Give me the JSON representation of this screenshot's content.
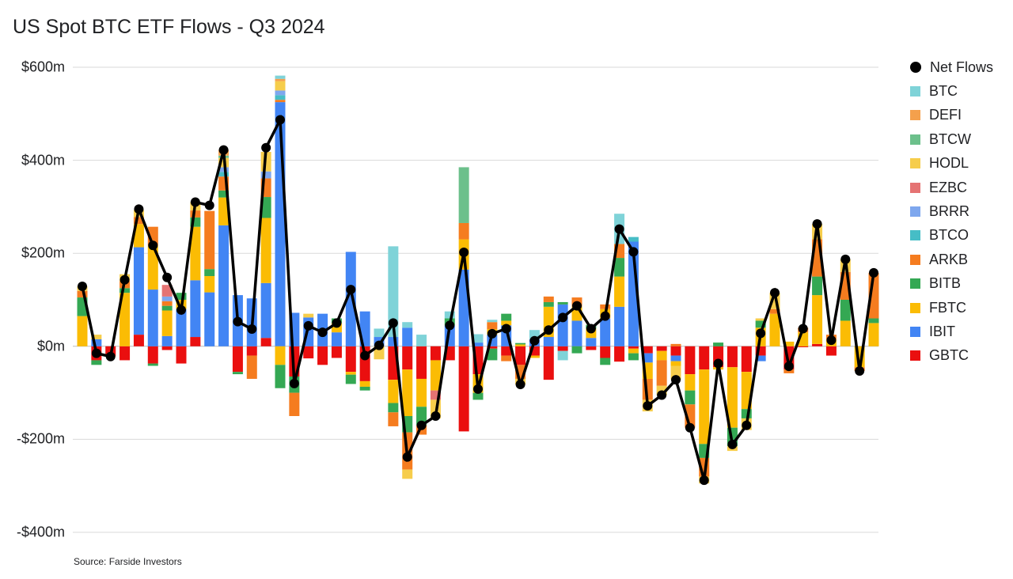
{
  "title": "US Spot BTC ETF Flows - Q3 2024",
  "source": "Source: Farside Investors",
  "chart_data": {
    "type": "bar",
    "stacked": true,
    "ylim": [
      -400,
      600
    ],
    "yticks": [
      {
        "value": 600,
        "label": "$600m"
      },
      {
        "value": 400,
        "label": "$400m"
      },
      {
        "value": 200,
        "label": "$200m"
      },
      {
        "value": 0,
        "label": "$0m"
      },
      {
        "value": -200,
        "label": "-$200m"
      },
      {
        "value": -400,
        "label": "-$400m"
      }
    ],
    "grid": true,
    "legend_position": "right",
    "legend": [
      {
        "name": "Net Flows",
        "color": "#000000",
        "marker": "dot"
      },
      {
        "name": "BTC",
        "color": "#7fd3d8"
      },
      {
        "name": "DEFI",
        "color": "#f4a04c"
      },
      {
        "name": "BTCW",
        "color": "#6cc08b"
      },
      {
        "name": "HODL",
        "color": "#f6cd4b"
      },
      {
        "name": "EZBC",
        "color": "#e57373"
      },
      {
        "name": "BRRR",
        "color": "#7ea7ee"
      },
      {
        "name": "BTCO",
        "color": "#46bdc6"
      },
      {
        "name": "ARKB",
        "color": "#f57c1f"
      },
      {
        "name": "BITB",
        "color": "#34a853"
      },
      {
        "name": "FBTC",
        "color": "#fbbc04"
      },
      {
        "name": "IBIT",
        "color": "#4285f4"
      },
      {
        "name": "GBTC",
        "color": "#ea0f0f"
      }
    ],
    "days": [
      {
        "net": 129,
        "s": {
          "FBTC": 65,
          "BITB": 40,
          "ARKB": 14,
          "HODL": 10
        }
      },
      {
        "net": -15,
        "s": {
          "IBIT": 15,
          "HODL": 10,
          "GBTC": -30,
          "BITB": -10
        }
      },
      {
        "net": -22,
        "s": {
          "GBTC": -20,
          "ARKB": -2
        }
      },
      {
        "net": 143,
        "s": {
          "FBTC": 115,
          "BITB": 10,
          "ARKB": 15,
          "HODL": 15,
          "GBTC": -30
        }
      },
      {
        "net": 295,
        "s": {
          "GBTC": 25,
          "IBIT": 188,
          "FBTC": 50,
          "ARKB": 15,
          "HODL": 15
        }
      },
      {
        "net": 217,
        "s": {
          "IBIT": 122,
          "FBTC": 95,
          "ARKB": 40,
          "GBTC": -37,
          "BITB": -5
        }
      },
      {
        "net": 148,
        "s": {
          "IBIT": 22,
          "FBTC": 55,
          "BITB": 10,
          "EZBC": 25,
          "BRRR": 10,
          "ARKB": 10,
          "GBTC": -8
        }
      },
      {
        "net": 78,
        "s": {
          "IBIT": 80,
          "FBTC": 20,
          "BITB": 15,
          "GBTC": -37
        }
      },
      {
        "net": 310,
        "s": {
          "GBTC": 20,
          "IBIT": 122,
          "FBTC": 115,
          "BITB": 20,
          "ARKB": 15,
          "HODL": 18
        }
      },
      {
        "net": 303,
        "s": {
          "IBIT": 116,
          "FBTC": 35,
          "BITB": 15,
          "ARKB": 125
        }
      },
      {
        "net": 422,
        "s": {
          "IBIT": 260,
          "FBTC": 60,
          "BITB": 15,
          "ARKB": 30,
          "HODL": 20,
          "BRRR": 10,
          "BTCO": 10,
          "BTCW": 5,
          "DEFI": 12
        }
      },
      {
        "net": 53,
        "s": {
          "IBIT": 110,
          "GBTC": -55,
          "BITB": -5
        }
      },
      {
        "net": 37,
        "s": {
          "IBIT": 103,
          "GBTC": -20,
          "ARKB": -50
        }
      },
      {
        "net": 427,
        "s": {
          "GBTC": 18,
          "IBIT": 118,
          "FBTC": 140,
          "BITB": 45,
          "ARKB": 40,
          "BRRR": 15,
          "HODL": 42
        }
      },
      {
        "net": 487,
        "s": {
          "IBIT": 525,
          "BTCO": 10,
          "ARKB": 5,
          "BRRR": 10,
          "HODL": 20,
          "BTC": 7,
          "DEFI": 5,
          "BITB": -50,
          "FBTC": -40
        }
      },
      {
        "net": -80,
        "s": {
          "IBIT": 72,
          "GBTC": -65,
          "BITB": -35,
          "ARKB": -50
        }
      },
      {
        "net": 44,
        "s": {
          "IBIT": 62,
          "HODL": 8,
          "GBTC": -26
        }
      },
      {
        "net": 30,
        "s": {
          "IBIT": 70,
          "GBTC": -40
        }
      },
      {
        "net": 50,
        "s": {
          "IBIT": 30,
          "FBTC": 20,
          "BITB": 10,
          "GBTC": -25
        }
      },
      {
        "net": 122,
        "s": {
          "IBIT": 203,
          "GBTC": -55,
          "FBTC": -6,
          "BITB": -20
        }
      },
      {
        "net": -20,
        "s": {
          "IBIT": 75,
          "GBTC": -75,
          "FBTC": -12,
          "BITB": -8
        }
      },
      {
        "net": 2,
        "s": {
          "IBIT": 20,
          "BTC": 18,
          "HODL": -28
        }
      },
      {
        "net": 50,
        "s": {
          "IBIT": 20,
          "BTC": 195,
          "GBTC": -72,
          "FBTC": -50,
          "BITB": -20,
          "ARKB": -30
        }
      },
      {
        "net": -238,
        "s": {
          "IBIT": 40,
          "BTC": 12,
          "GBTC": -50,
          "FBTC": -100,
          "BITB": -35,
          "ARKB": -80,
          "HODL": -20
        }
      },
      {
        "net": -170,
        "s": {
          "BTC": 25,
          "GBTC": -70,
          "FBTC": -60,
          "BITB": -40,
          "ARKB": -20
        }
      },
      {
        "net": -150,
        "s": {
          "GBTC": -30,
          "FBTC": -65,
          "HODL": -40,
          "EZBC": -20
        }
      },
      {
        "net": 45,
        "s": {
          "IBIT": 45,
          "BITB": 15,
          "BTC": 15,
          "GBTC": -30
        }
      },
      {
        "net": 202,
        "s": {
          "IBIT": 165,
          "FBTC": 65,
          "ARKB": 35,
          "BTCW": 120,
          "GBTC": -183
        }
      },
      {
        "net": -92,
        "s": {
          "IBIT": 8,
          "BTC": 18,
          "GBTC": -60,
          "FBTC": -40,
          "BITB": -15
        }
      },
      {
        "net": 27,
        "s": {
          "IBIT": 25,
          "FBTC": 12,
          "ARKB": 15,
          "BTC": 5,
          "GBTC": -5,
          "BITB": -25
        }
      },
      {
        "net": 38,
        "s": {
          "IBIT": 45,
          "BITB": 15,
          "FBTC": 10,
          "GBTC": -20,
          "ARKB": -12
        }
      },
      {
        "net": -82,
        "s": {
          "FBTC": 4,
          "BITB": 3,
          "GBTC": -40,
          "ARKB": -30,
          "HODL": -12
        }
      },
      {
        "net": 12,
        "s": {
          "IBIT": 15,
          "BTC": 20,
          "GBTC": -20,
          "FBTC": -5
        }
      },
      {
        "net": 35,
        "s": {
          "IBIT": 20,
          "FBTC": 65,
          "BITB": 10,
          "ARKB": 12,
          "GBTC": -72
        }
      },
      {
        "net": 62,
        "s": {
          "IBIT": 90,
          "BITB": 5,
          "BTC": -20,
          "BITB_neg": 0,
          "GBTC": -10
        }
      },
      {
        "net": 87,
        "s": {
          "IBIT": 55,
          "FBTC": 30,
          "ARKB": 20,
          "BITB": -15
        }
      },
      {
        "net": 38,
        "s": {
          "IBIT": 18,
          "FBTC": 20,
          "BITB": 8,
          "GBTC": -8
        }
      },
      {
        "net": 65,
        "s": {
          "IBIT": 60,
          "FBTC": 20,
          "ARKB": 10,
          "GBTC": -25,
          "BITB": -15
        }
      },
      {
        "net": 252,
        "s": {
          "IBIT": 85,
          "FBTC": 65,
          "BITB": 40,
          "ARKB": 30,
          "BTC": 65,
          "GBTC": -33
        }
      },
      {
        "net": 203,
        "s": {
          "IBIT": 225,
          "BTCO": 10,
          "GBTC": -5,
          "BITB": -15,
          "FBTC": -10
        }
      },
      {
        "net": -128,
        "s": {
          "IBIT": -20,
          "GBTC": -15,
          "FBTC": -35,
          "ARKB": -45,
          "HODL": -25
        }
      },
      {
        "net": -105,
        "s": {
          "GBTC": -10,
          "FBTC": -20,
          "ARKB": -55,
          "HODL": -20
        }
      },
      {
        "net": -72,
        "s": {
          "IBIT": -12,
          "GBTC": -20,
          "FBTC": -10,
          "HODL": -30,
          "ARKB": 5
        }
      },
      {
        "net": -175,
        "s": {
          "GBTC": -60,
          "FBTC": -35,
          "BITB": -30,
          "ARKB": -50
        }
      },
      {
        "net": -288,
        "s": {
          "GBTC": -50,
          "FBTC": -160,
          "BITB": -30,
          "ARKB": -40,
          "HODL": -15
        }
      },
      {
        "net": -37,
        "s": {
          "BITB": 8,
          "GBTC": -45,
          "FBTC": -5
        }
      },
      {
        "net": -211,
        "s": {
          "GBTC": -45,
          "FBTC": -130,
          "BITB": -40,
          "HODL": -10
        }
      },
      {
        "net": -170,
        "s": {
          "GBTC": -55,
          "FBTC": -80,
          "BITB": -20,
          "HODL": -25
        }
      },
      {
        "net": 28,
        "s": {
          "IBIT": -12,
          "FBTC": 40,
          "BITB": 15,
          "HODL": 5,
          "GBTC": -20
        }
      },
      {
        "net": 115,
        "s": {
          "FBTC": 70,
          "ARKB": 10,
          "HODL": 35
        }
      },
      {
        "net": -43,
        "s": {
          "FBTC": 10,
          "GBTC": -50,
          "ARKB": -8
        }
      },
      {
        "net": 38,
        "s": {
          "FBTC": 30,
          "ARKB": 10,
          "GBTC": -2
        }
      },
      {
        "net": 263,
        "s": {
          "GBTC": 5,
          "FBTC": 105,
          "BITB": 40,
          "ARKB": 80,
          "HODL": 33
        }
      },
      {
        "net": 13,
        "s": {
          "FBTC": 15,
          "GBTC": -20,
          "ARKB": 10
        }
      },
      {
        "net": 187,
        "s": {
          "FBTC": 55,
          "BITB": 45,
          "ARKB": 60,
          "HODL": 27
        }
      },
      {
        "net": -53,
        "s": {
          "FBTC": -45,
          "ARKB": -8
        }
      },
      {
        "net": 158,
        "s": {
          "FBTC": 50,
          "BITB": 10,
          "ARKB": 98
        }
      }
    ]
  }
}
